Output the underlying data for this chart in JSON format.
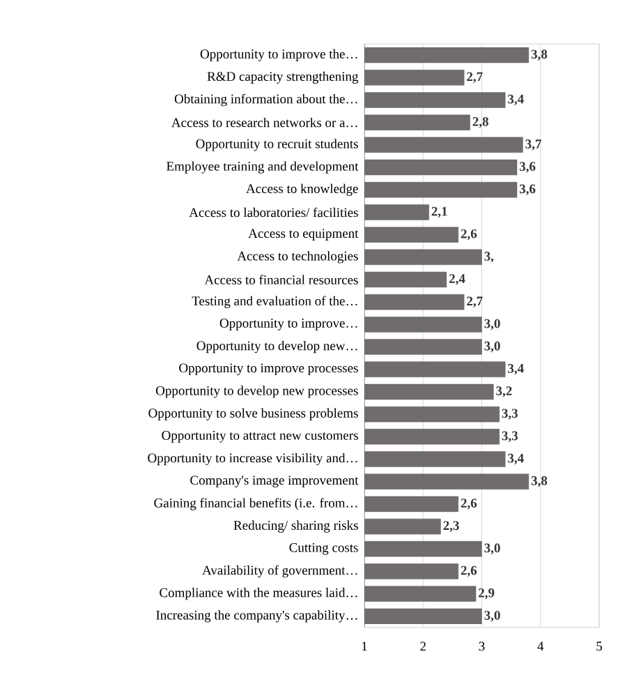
{
  "chart_data": {
    "type": "bar",
    "orientation": "horizontal",
    "categories": [
      "Opportunity to improve the…",
      "R&D capacity strengthening",
      "Obtaining information about the…",
      "Access to research networks or a…",
      "Opportunity to recruit students",
      "Employee training and development",
      "Access to knowledge",
      "Access to laboratories/ facilities",
      "Access to equipment",
      "Access to technologies",
      "Access to financial resources",
      "Testing and evaluation of the…",
      "Opportunity to improve…",
      "Opportunity to develop new…",
      "Opportunity to improve processes",
      "Opportunity to develop new processes",
      "Opportunity to solve business problems",
      "Opportunity to attract new customers",
      "Opportunity to increase visibility and…",
      "Company's image improvement",
      "Gaining financial benefits (i.e. from…",
      "Reducing/ sharing risks",
      "Cutting costs",
      "Availability of government…",
      "Compliance with the measures laid…",
      "Increasing the company's capability…"
    ],
    "values": [
      3.8,
      2.7,
      3.4,
      2.8,
      3.7,
      3.6,
      3.6,
      2.1,
      2.6,
      3.0,
      2.4,
      2.7,
      3.0,
      3.0,
      3.4,
      3.2,
      3.3,
      3.3,
      3.4,
      3.8,
      2.6,
      2.3,
      3.0,
      2.6,
      2.9,
      3.0
    ],
    "value_labels": [
      "3,8",
      "2,7",
      "3,4",
      "2,8",
      "3,7",
      "3,6",
      "3,6",
      "2,1",
      "2,6",
      "3,",
      "2,4",
      "2,7",
      "3,0",
      "3,0",
      "3,4",
      "3,2",
      "3,3",
      "3,3",
      "3,4",
      "3,8",
      "2,6",
      "2,3",
      "3,0",
      "2,6",
      "2,9",
      "3,0"
    ],
    "color": "#706c6c",
    "xlim": [
      1,
      5
    ],
    "xticks": [
      1,
      2,
      3,
      4,
      5
    ],
    "grid": "x"
  }
}
